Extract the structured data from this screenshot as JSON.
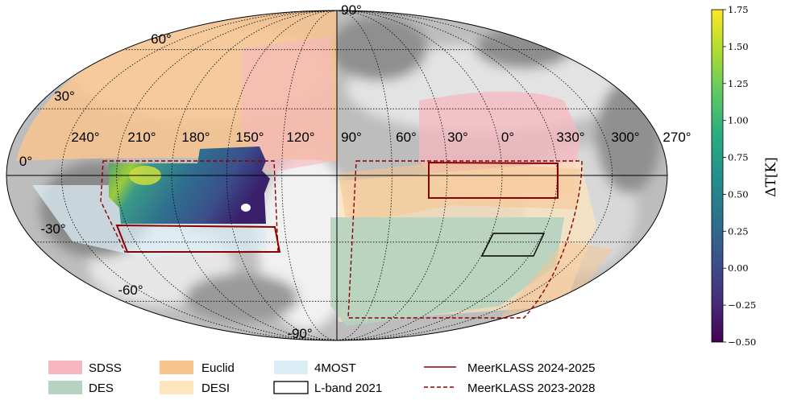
{
  "chart_data": {
    "type": "heatmap",
    "projection": "mollweide",
    "title": "",
    "colorbar": {
      "label": "ΔT[K]",
      "colormap": "viridis",
      "range": [
        -0.5,
        1.75
      ],
      "ticks": [
        "1.75",
        "1.50",
        "1.25",
        "1.00",
        "0.75",
        "0.50",
        "0.25",
        "0.00",
        "−0.25",
        "−0.50"
      ],
      "tick_values": [
        1.75,
        1.5,
        1.25,
        1.0,
        0.75,
        0.5,
        0.25,
        0.0,
        -0.25,
        -0.5
      ]
    },
    "longitude_labels": [
      "240°",
      "210°",
      "180°",
      "150°",
      "120°",
      "90°",
      "60°",
      "30°",
      "0°",
      "330°",
      "300°",
      "270°"
    ],
    "longitude_values": [
      240,
      210,
      180,
      150,
      120,
      90,
      60,
      30,
      0,
      330,
      300,
      270
    ],
    "latitude_labels": [
      "90°",
      "60°",
      "30°",
      "0°",
      "-30°",
      "-60°",
      "-90°"
    ],
    "latitude_values": [
      90,
      60,
      30,
      0,
      -30,
      -60,
      -90
    ],
    "grid": true,
    "legend_position": "bottom",
    "series": [
      {
        "name": "SDSS",
        "style": "filled",
        "color": "#f7b7c0"
      },
      {
        "name": "DES",
        "style": "filled",
        "color": "#b5d3c0"
      },
      {
        "name": "Euclid",
        "style": "filled",
        "color": "#f8c48e"
      },
      {
        "name": "DESI",
        "style": "filled",
        "color": "#fde6bd"
      },
      {
        "name": "4MOST",
        "style": "filled",
        "color": "#dceef5"
      },
      {
        "name": "L-band 2021",
        "style": "outline",
        "color": "#000000"
      },
      {
        "name": "MeerKLASS 2024-2025",
        "style": "solid-line",
        "color": "#8b0000"
      },
      {
        "name": "MeerKLASS 2023-2028",
        "style": "dashed-line",
        "color": "#8b0000"
      }
    ]
  }
}
